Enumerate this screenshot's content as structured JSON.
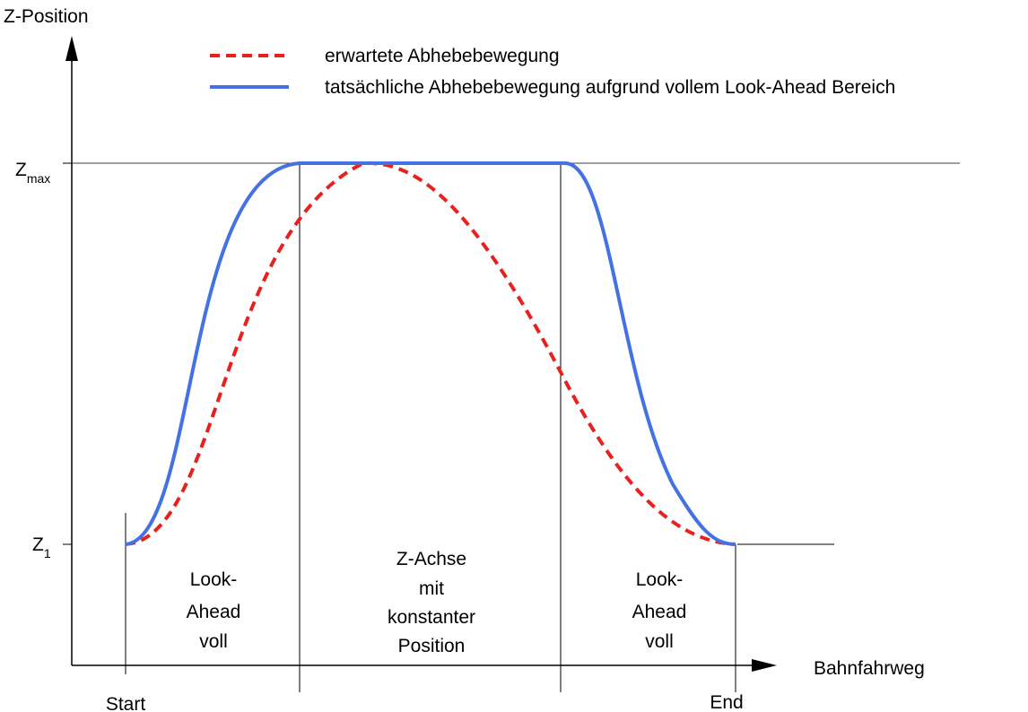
{
  "axes": {
    "y_label": "Z-Position",
    "x_label": "Bahnfahrweg",
    "z_max": {
      "main": "Z",
      "sub": "max"
    },
    "z_1": {
      "main": "Z",
      "sub": "1"
    }
  },
  "legend": {
    "expected": "erwartete Abhebebewegung",
    "actual": "tatsächliche Abhebebewegung aufgrund vollem Look-Ahead Bereich"
  },
  "markers": {
    "start": "Start",
    "end": "End"
  },
  "regions": {
    "left": [
      "Look-",
      "Ahead",
      "voll"
    ],
    "middle": [
      "Z-Achse",
      "mit",
      "konstanter",
      "Position"
    ],
    "right": [
      "Look-",
      "Ahead",
      "voll"
    ]
  },
  "colors": {
    "expected": "#e8201e",
    "actual": "#4472e4",
    "axis": "#000000"
  }
}
